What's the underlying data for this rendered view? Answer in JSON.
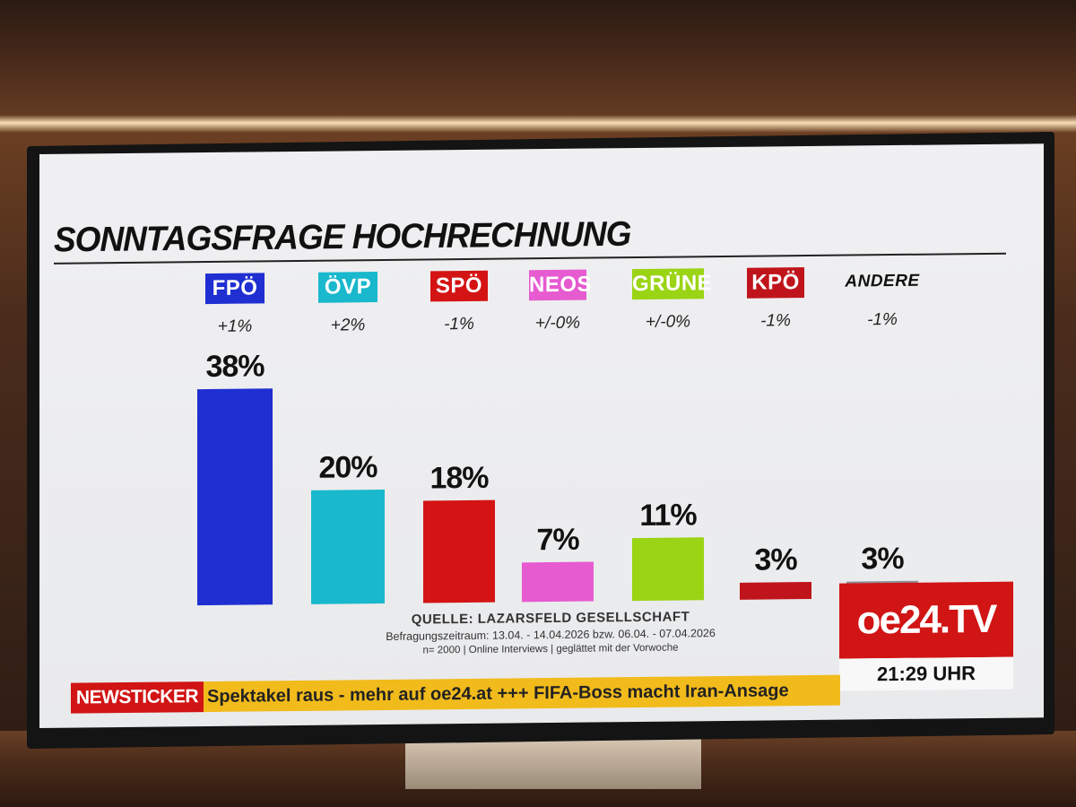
{
  "chart_data": {
    "type": "bar",
    "title": "SONNTAGSFRAGE HOCHRECHNUNG",
    "categories": [
      "FPÖ",
      "ÖVP",
      "SPÖ",
      "NEOS",
      "GRÜNE",
      "KPÖ",
      "ANDERE"
    ],
    "values": [
      38,
      20,
      18,
      7,
      11,
      3,
      3
    ],
    "value_labels": [
      "38%",
      "20%",
      "18%",
      "7%",
      "11%",
      "3%",
      "3%"
    ],
    "changes": [
      "+1%",
      "+2%",
      "-1%",
      "+/-0%",
      "+/-0%",
      "-1%",
      "-1%"
    ],
    "colors": [
      "#1f2fd1",
      "#19b8cc",
      "#d41414",
      "#e65bd0",
      "#9ad414",
      "#c0141c",
      "#8d9199"
    ],
    "unit": "%",
    "grid": false,
    "legend": "none"
  },
  "source": {
    "line1": "QUELLE: LAZARSFELD GESELLSCHAFT",
    "line2": "Befragungszeitraum: 13.04. - 14.04.2026 bzw. 06.04. - 07.04.2026",
    "line3": "n= 2000 | Online Interviews | geglättet mit der Vorwoche"
  },
  "branding": {
    "logo_text": "oe24.TV",
    "time": "21:29 UHR"
  },
  "ticker": {
    "label": "NEWSTICKER",
    "text": "Spektakel raus - mehr auf oe24.at +++ FIFA-Boss macht Iran-Ansage"
  }
}
